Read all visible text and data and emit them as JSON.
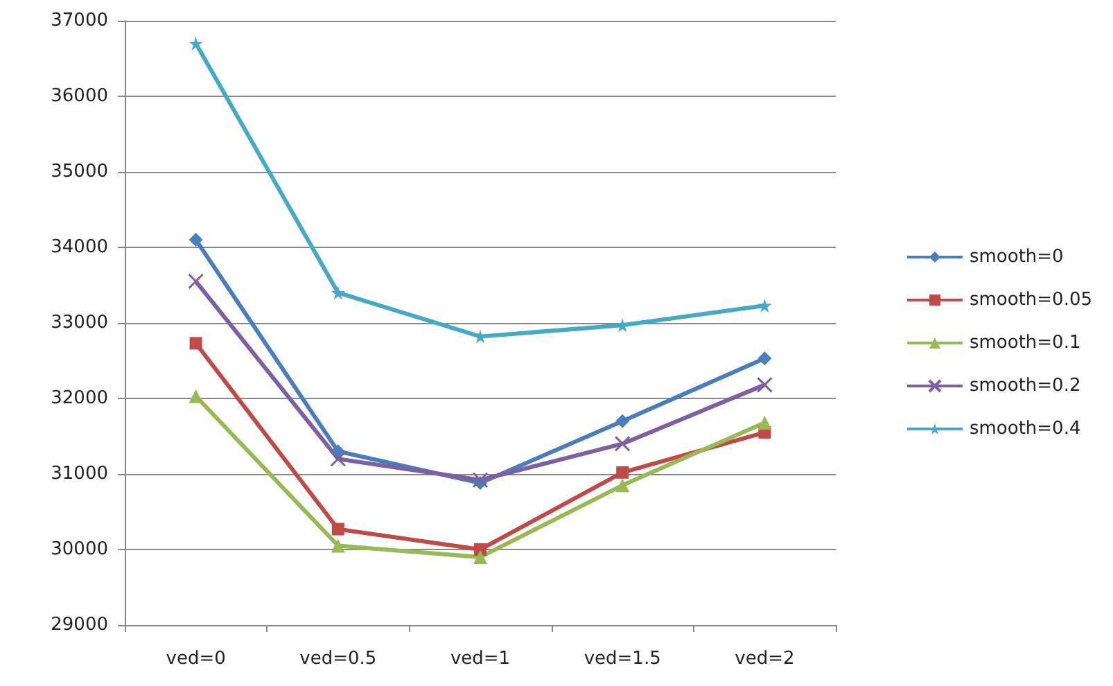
{
  "chart_data": {
    "type": "line",
    "categories": [
      "ved=0",
      "ved=0.5",
      "ved=1",
      "ved=1.5",
      "ved=2"
    ],
    "series": [
      {
        "name": "smooth=0",
        "color": "#4a7ebb",
        "marker": "diamond",
        "values": [
          34100,
          31300,
          30880,
          31700,
          32530
        ]
      },
      {
        "name": "smooth=0.05",
        "color": "#be4b48",
        "marker": "square",
        "values": [
          32730,
          30270,
          30000,
          31020,
          31550
        ]
      },
      {
        "name": "smooth=0.1",
        "color": "#98b954",
        "marker": "triangle",
        "values": [
          32030,
          30050,
          29900,
          30850,
          31680
        ]
      },
      {
        "name": "smooth=0.2",
        "color": "#7d60a0",
        "marker": "cross",
        "values": [
          33550,
          31200,
          30920,
          31400,
          32180
        ]
      },
      {
        "name": "smooth=0.4",
        "color": "#46aac5",
        "marker": "star",
        "values": [
          36700,
          33400,
          32820,
          32970,
          33230
        ]
      }
    ],
    "ylim": [
      29000,
      37000
    ],
    "yticks": [
      29000,
      30000,
      31000,
      32000,
      33000,
      34000,
      35000,
      36000,
      37000
    ],
    "grid": "y",
    "legend": "right",
    "line_style": "solid"
  }
}
